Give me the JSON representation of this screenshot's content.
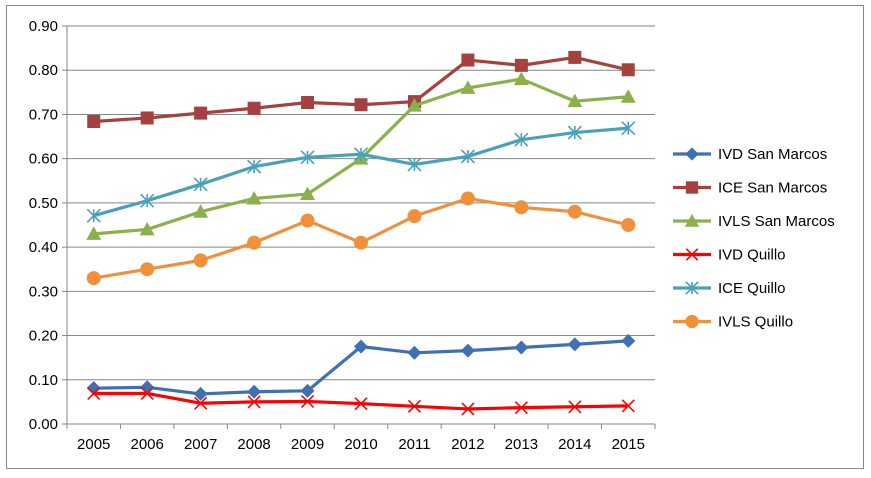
{
  "chart_data": {
    "type": "line",
    "title": "",
    "xlabel": "",
    "ylabel": "",
    "x": [
      "2005",
      "2006",
      "2007",
      "2008",
      "2009",
      "2010",
      "2011",
      "2012",
      "2013",
      "2014",
      "2015"
    ],
    "ylim": [
      0,
      0.9
    ],
    "yticks": [
      "0.00",
      "0.10",
      "0.20",
      "0.30",
      "0.40",
      "0.50",
      "0.60",
      "0.70",
      "0.80",
      "0.90"
    ],
    "grid": true,
    "legend_position": "right",
    "series": [
      {
        "name": "IVD San Marcos",
        "color": "#3E70B2",
        "marker": "diamond",
        "values": [
          0.081,
          0.083,
          0.068,
          0.073,
          0.075,
          0.175,
          0.161,
          0.166,
          0.173,
          0.18,
          0.188
        ]
      },
      {
        "name": "ICE San Marcos",
        "color": "#A5413E",
        "marker": "square",
        "values": [
          0.684,
          0.692,
          0.703,
          0.714,
          0.727,
          0.722,
          0.729,
          0.823,
          0.811,
          0.829,
          0.801
        ]
      },
      {
        "name": "IVLS San Marcos",
        "color": "#8BB04C",
        "marker": "triangle",
        "values": [
          0.43,
          0.44,
          0.48,
          0.51,
          0.52,
          0.6,
          0.72,
          0.76,
          0.78,
          0.73,
          0.74
        ]
      },
      {
        "name": "IVD Quillo",
        "color": "#FF0000",
        "marker": "x",
        "values": [
          0.069,
          0.069,
          0.047,
          0.05,
          0.051,
          0.046,
          0.04,
          0.034,
          0.037,
          0.039,
          0.041
        ]
      },
      {
        "name": "ICE Quillo",
        "color": "#4BA0BA",
        "marker": "star",
        "values": [
          0.471,
          0.505,
          0.542,
          0.582,
          0.603,
          0.61,
          0.587,
          0.605,
          0.643,
          0.659,
          0.669
        ]
      },
      {
        "name": "IVLS Quillo",
        "color": "#F1903A",
        "marker": "circle",
        "values": [
          0.33,
          0.35,
          0.37,
          0.41,
          0.46,
          0.41,
          0.47,
          0.51,
          0.49,
          0.48,
          0.45
        ]
      }
    ]
  }
}
